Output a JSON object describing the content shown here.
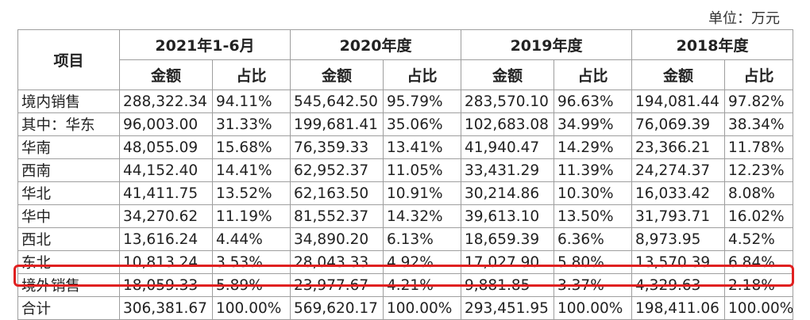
{
  "unit_label": "单位：万元",
  "header": {
    "item": "项目",
    "periods": [
      "2021年1-6月",
      "2020年度",
      "2019年度",
      "2018年度"
    ],
    "sub": {
      "amount": "金额",
      "ratio": "占比"
    }
  },
  "rows": [
    {
      "label": "境内销售",
      "values": [
        "288,322.34",
        "94.11%",
        "545,642.50",
        "95.79%",
        "283,570.10",
        "96.63%",
        "194,081.44",
        "97.82%"
      ]
    },
    {
      "label": "其中：华东",
      "values": [
        "96,003.00",
        "31.33%",
        "199,681.41",
        "35.06%",
        "102,683.08",
        "34.99%",
        "76,069.39",
        "38.34%"
      ]
    },
    {
      "label": "华南",
      "values": [
        "48,055.09",
        "15.68%",
        "76,359.33",
        "13.41%",
        "41,940.47",
        "14.29%",
        "23,366.21",
        "11.78%"
      ]
    },
    {
      "label": "西南",
      "values": [
        "44,152.40",
        "14.41%",
        "62,952.37",
        "11.05%",
        "33,431.29",
        "11.39%",
        "24,274.37",
        "12.23%"
      ]
    },
    {
      "label": "华北",
      "values": [
        "41,411.75",
        "13.52%",
        "62,163.50",
        "10.91%",
        "30,214.86",
        "10.30%",
        "16,033.42",
        "8.08%"
      ]
    },
    {
      "label": "华中",
      "values": [
        "34,270.62",
        "11.19%",
        "81,552.37",
        "14.32%",
        "39,613.10",
        "13.50%",
        "31,793.71",
        "16.02%"
      ]
    },
    {
      "label": "西北",
      "values": [
        "13,616.24",
        "4.44%",
        "34,890.20",
        "6.13%",
        "18,659.39",
        "6.36%",
        "8,973.95",
        "4.52%"
      ]
    },
    {
      "label": "东北",
      "values": [
        "10,813.24",
        "3.53%",
        "28,043.33",
        "4.92%",
        "17,027.90",
        "5.80%",
        "13,570.39",
        "6.84%"
      ]
    },
    {
      "label": "境外销售",
      "values": [
        "18,059.33",
        "5.89%",
        "23,977.67",
        "4.21%",
        "9,881.85",
        "3.37%",
        "4,329.63",
        "2.18%"
      ],
      "highlighted": true
    },
    {
      "label": "合计",
      "values": [
        "306,381.67",
        "100.00%",
        "569,620.17",
        "100.00%",
        "293,451.95",
        "100.00%",
        "198,411.06",
        "100.00%"
      ]
    }
  ],
  "highlight_color": "#e02020"
}
